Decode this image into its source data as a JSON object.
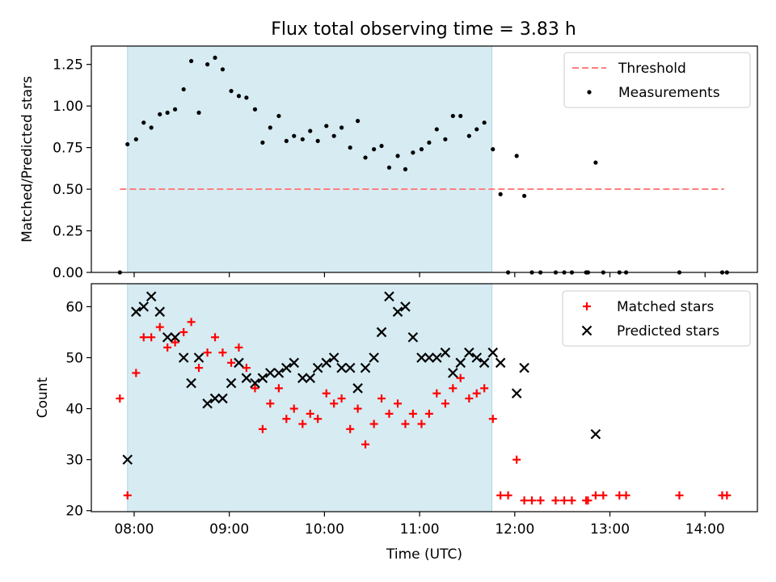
{
  "figure": {
    "title": "Flux total observing time = 3.83 h"
  },
  "chart_data": [
    {
      "type": "scatter",
      "panel": "top",
      "ylabel": "Matched/Predicted stars",
      "xlabel": "",
      "ylim": [
        0,
        1.36
      ],
      "yticks": [
        0.0,
        0.25,
        0.5,
        0.75,
        1.0,
        1.25
      ],
      "ytick_labels": [
        "0.00",
        "0.25",
        "0.50",
        "0.75",
        "1.00",
        "1.25"
      ],
      "xlim": [
        7.55,
        14.55
      ],
      "grid": false,
      "legend_position": "top-right",
      "shaded_span": {
        "x_start": 7.93,
        "x_end": 11.76,
        "color": "#add8e6"
      },
      "threshold": {
        "name": "Threshold",
        "y": 0.5,
        "x_start": 7.85,
        "x_end": 14.2,
        "color": "#ff7f7f",
        "style": "dashed"
      },
      "series": [
        {
          "name": "Measurements",
          "color": "#000000",
          "marker": "dot",
          "points": [
            [
              7.85,
              0.0
            ],
            [
              7.93,
              0.77
            ],
            [
              8.02,
              0.8
            ],
            [
              8.1,
              0.9
            ],
            [
              8.18,
              0.87
            ],
            [
              8.27,
              0.95
            ],
            [
              8.35,
              0.96
            ],
            [
              8.43,
              0.98
            ],
            [
              8.52,
              1.1
            ],
            [
              8.6,
              1.27
            ],
            [
              8.68,
              0.96
            ],
            [
              8.77,
              1.25
            ],
            [
              8.85,
              1.29
            ],
            [
              8.93,
              1.22
            ],
            [
              9.02,
              1.09
            ],
            [
              9.1,
              1.06
            ],
            [
              9.18,
              1.05
            ],
            [
              9.27,
              0.98
            ],
            [
              9.35,
              0.78
            ],
            [
              9.43,
              0.87
            ],
            [
              9.52,
              0.94
            ],
            [
              9.6,
              0.79
            ],
            [
              9.68,
              0.82
            ],
            [
              9.77,
              0.8
            ],
            [
              9.85,
              0.85
            ],
            [
              9.93,
              0.79
            ],
            [
              10.02,
              0.88
            ],
            [
              10.1,
              0.82
            ],
            [
              10.18,
              0.87
            ],
            [
              10.27,
              0.75
            ],
            [
              10.35,
              0.91
            ],
            [
              10.43,
              0.69
            ],
            [
              10.52,
              0.74
            ],
            [
              10.6,
              0.76
            ],
            [
              10.68,
              0.63
            ],
            [
              10.77,
              0.7
            ],
            [
              10.85,
              0.62
            ],
            [
              10.93,
              0.72
            ],
            [
              11.02,
              0.74
            ],
            [
              11.1,
              0.78
            ],
            [
              11.18,
              0.86
            ],
            [
              11.27,
              0.8
            ],
            [
              11.35,
              0.94
            ],
            [
              11.43,
              0.94
            ],
            [
              11.52,
              0.82
            ],
            [
              11.6,
              0.86
            ],
            [
              11.68,
              0.9
            ],
            [
              11.77,
              0.74
            ],
            [
              11.85,
              0.47
            ],
            [
              11.93,
              0.0
            ],
            [
              12.02,
              0.7
            ],
            [
              12.1,
              0.46
            ],
            [
              12.18,
              0.0
            ],
            [
              12.27,
              0.0
            ],
            [
              12.43,
              0.0
            ],
            [
              12.52,
              0.0
            ],
            [
              12.6,
              0.0
            ],
            [
              12.75,
              0.0
            ],
            [
              12.77,
              0.0
            ],
            [
              12.85,
              0.66
            ],
            [
              12.93,
              0.0
            ],
            [
              13.1,
              0.0
            ],
            [
              13.17,
              0.0
            ],
            [
              13.73,
              0.0
            ],
            [
              14.18,
              0.0
            ],
            [
              14.23,
              0.0
            ]
          ]
        }
      ]
    },
    {
      "type": "scatter",
      "panel": "bottom",
      "ylabel": "Count",
      "xlabel": "Time (UTC)",
      "ylim": [
        19.8,
        64.5
      ],
      "yticks": [
        20,
        30,
        40,
        50,
        60
      ],
      "ytick_labels": [
        "20",
        "30",
        "40",
        "50",
        "60"
      ],
      "xlim": [
        7.55,
        14.55
      ],
      "xticks": [
        8,
        9,
        10,
        11,
        12,
        13,
        14
      ],
      "xtick_labels": [
        "08:00",
        "09:00",
        "10:00",
        "11:00",
        "12:00",
        "13:00",
        "14:00"
      ],
      "grid": false,
      "legend_position": "top-right",
      "shaded_span": {
        "x_start": 7.93,
        "x_end": 11.76,
        "color": "#add8e6"
      },
      "series": [
        {
          "name": "Matched stars",
          "color": "#ff0000",
          "marker": "plus",
          "points": [
            [
              7.85,
              42
            ],
            [
              7.93,
              23
            ],
            [
              8.02,
              47
            ],
            [
              8.1,
              54
            ],
            [
              8.18,
              54
            ],
            [
              8.27,
              56
            ],
            [
              8.35,
              52
            ],
            [
              8.43,
              53
            ],
            [
              8.52,
              55
            ],
            [
              8.6,
              57
            ],
            [
              8.68,
              48
            ],
            [
              8.77,
              51
            ],
            [
              8.85,
              54
            ],
            [
              8.93,
              51
            ],
            [
              9.02,
              49
            ],
            [
              9.1,
              52
            ],
            [
              9.18,
              48
            ],
            [
              9.27,
              44
            ],
            [
              9.35,
              36
            ],
            [
              9.43,
              41
            ],
            [
              9.52,
              44
            ],
            [
              9.6,
              38
            ],
            [
              9.68,
              40
            ],
            [
              9.77,
              37
            ],
            [
              9.85,
              39
            ],
            [
              9.93,
              38
            ],
            [
              10.02,
              43
            ],
            [
              10.1,
              41
            ],
            [
              10.18,
              42
            ],
            [
              10.27,
              36
            ],
            [
              10.35,
              40
            ],
            [
              10.43,
              33
            ],
            [
              10.52,
              37
            ],
            [
              10.6,
              42
            ],
            [
              10.68,
              39
            ],
            [
              10.77,
              41
            ],
            [
              10.85,
              37
            ],
            [
              10.93,
              39
            ],
            [
              11.02,
              37
            ],
            [
              11.1,
              39
            ],
            [
              11.18,
              43
            ],
            [
              11.27,
              41
            ],
            [
              11.35,
              44
            ],
            [
              11.43,
              46
            ],
            [
              11.52,
              42
            ],
            [
              11.6,
              43
            ],
            [
              11.68,
              44
            ],
            [
              11.77,
              38
            ],
            [
              11.85,
              23
            ],
            [
              11.93,
              23
            ],
            [
              12.02,
              30
            ],
            [
              12.1,
              22
            ],
            [
              12.18,
              22
            ],
            [
              12.27,
              22
            ],
            [
              12.43,
              22
            ],
            [
              12.52,
              22
            ],
            [
              12.6,
              22
            ],
            [
              12.75,
              22
            ],
            [
              12.77,
              22
            ],
            [
              12.85,
              23
            ],
            [
              12.93,
              23
            ],
            [
              13.1,
              23
            ],
            [
              13.17,
              23
            ],
            [
              13.73,
              23
            ],
            [
              14.18,
              23
            ],
            [
              14.23,
              23
            ]
          ]
        },
        {
          "name": "Predicted stars",
          "color": "#000000",
          "marker": "x",
          "points": [
            [
              7.93,
              30
            ],
            [
              8.02,
              59
            ],
            [
              8.1,
              60
            ],
            [
              8.18,
              62
            ],
            [
              8.27,
              59
            ],
            [
              8.35,
              54
            ],
            [
              8.43,
              54
            ],
            [
              8.52,
              50
            ],
            [
              8.6,
              45
            ],
            [
              8.68,
              50
            ],
            [
              8.77,
              41
            ],
            [
              8.85,
              42
            ],
            [
              8.93,
              42
            ],
            [
              9.02,
              45
            ],
            [
              9.1,
              49
            ],
            [
              9.18,
              46
            ],
            [
              9.27,
              45
            ],
            [
              9.35,
              46
            ],
            [
              9.43,
              47
            ],
            [
              9.52,
              47
            ],
            [
              9.6,
              48
            ],
            [
              9.68,
              49
            ],
            [
              9.77,
              46
            ],
            [
              9.85,
              46
            ],
            [
              9.93,
              48
            ],
            [
              10.02,
              49
            ],
            [
              10.1,
              50
            ],
            [
              10.18,
              48
            ],
            [
              10.27,
              48
            ],
            [
              10.35,
              44
            ],
            [
              10.43,
              48
            ],
            [
              10.52,
              50
            ],
            [
              10.6,
              55
            ],
            [
              10.68,
              62
            ],
            [
              10.77,
              59
            ],
            [
              10.85,
              60
            ],
            [
              10.93,
              54
            ],
            [
              11.02,
              50
            ],
            [
              11.1,
              50
            ],
            [
              11.18,
              50
            ],
            [
              11.27,
              51
            ],
            [
              11.35,
              47
            ],
            [
              11.43,
              49
            ],
            [
              11.52,
              51
            ],
            [
              11.6,
              50
            ],
            [
              11.68,
              49
            ],
            [
              11.77,
              51
            ],
            [
              11.85,
              49
            ],
            [
              12.02,
              43
            ],
            [
              12.1,
              48
            ],
            [
              12.85,
              35
            ]
          ]
        }
      ]
    }
  ]
}
